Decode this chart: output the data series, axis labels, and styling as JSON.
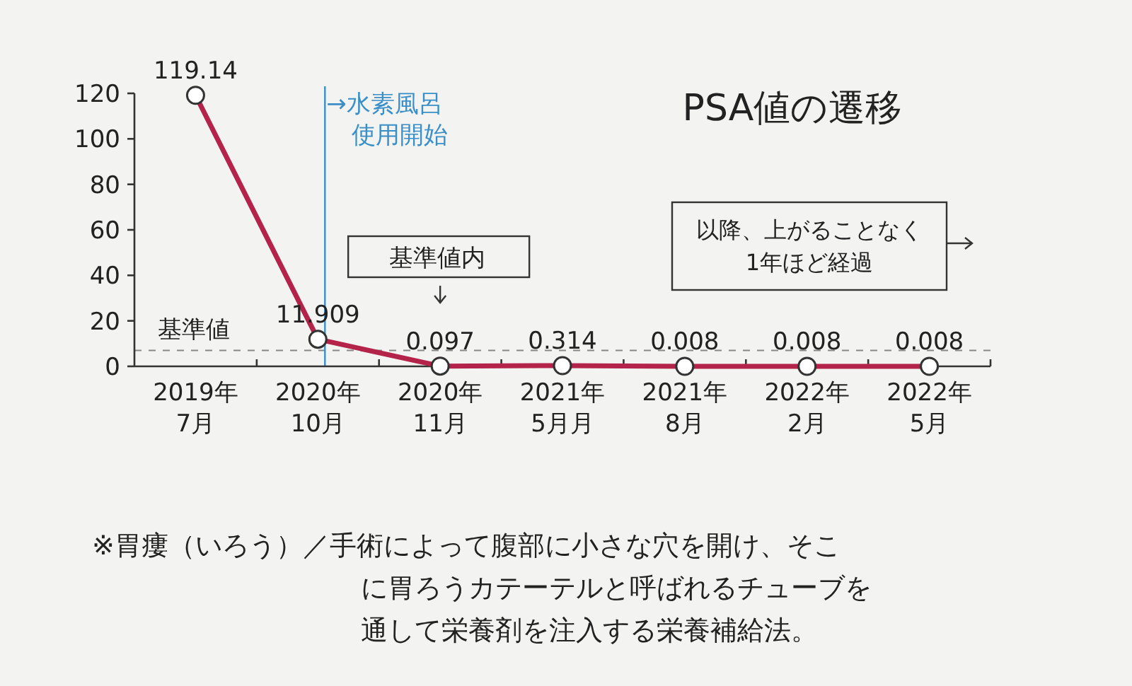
{
  "chart_data": {
    "type": "line",
    "title": "PSA値の遷移",
    "categories": [
      "2019年\n7月",
      "2020年\n10月",
      "2020年\n11月",
      "2021年\n5月月",
      "2021年\n8月",
      "2022年\n2月",
      "2022年\n5月"
    ],
    "series": [
      {
        "color": "#b3234a",
        "values": [
          119.14,
          11.909,
          0.097,
          0.314,
          0.008,
          0.008,
          0.008
        ]
      }
    ],
    "ylim": [
      0,
      120
    ],
    "yticks": [
      0,
      20,
      40,
      60,
      80,
      100,
      120
    ],
    "data_labels": true,
    "marker": "circle",
    "line_style": "solid",
    "ref_lines": [
      {
        "axis": "y",
        "value": 7,
        "label": "基準値",
        "color": "#888888",
        "line_style": "dashed"
      },
      {
        "axis": "x",
        "value": "2020年\n10月",
        "label": "→水素風呂使用開始",
        "color": "#3a8fc8",
        "line_style": "solid"
      }
    ],
    "annotations": [
      "基準値内",
      "以降、上がることなく1年ほど経過",
      "※胃瘻（いろう）／手術によって腹部に小さな穴を開け、そこに胃ろうカテーテルと呼ばれるチューブを通して栄養剤を注入する栄養補給法。"
    ]
  }
}
